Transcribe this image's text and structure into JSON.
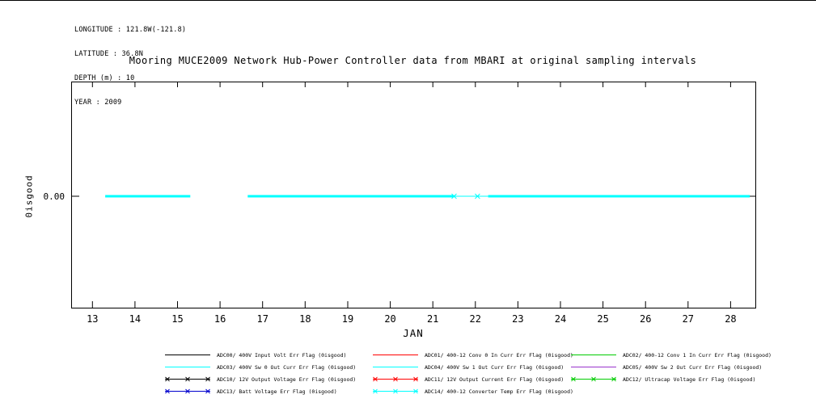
{
  "title": "Mooring MUCE2009 Network Hub-Power Controller data from MBARI at original sampling intervals",
  "metadata": {
    "lines": [
      "LONGITUDE : 121.8W(-121.8)",
      "LATITUDE : 36.8N",
      "DEPTH (m) : 10",
      "YEAR : 2009"
    ]
  },
  "chart_data": {
    "type": "line",
    "title": "Mooring MUCE2009 Network Hub-Power Controller data from MBARI at original sampling intervals",
    "xlabel": "JAN",
    "ylabel": "0isgood",
    "x_ticks": [
      13,
      14,
      15,
      16,
      17,
      18,
      19,
      20,
      21,
      22,
      23,
      24,
      25,
      26,
      27,
      28
    ],
    "xlim": [
      12.5,
      28.6
    ],
    "y_ticks": [
      "0.00"
    ],
    "grid": false,
    "legend_position": "below",
    "series": [
      {
        "name": "ADC14/ 400-12 Converter Temp Err Flag (0isgood) - topmost of overlapping flag series, all constant 0",
        "color": "#00ffff",
        "value": 0,
        "segments": [
          [
            13.3,
            15.3
          ],
          [
            16.65,
            21.5
          ],
          [
            22.3,
            28.45
          ]
        ],
        "thin_segments": [
          [
            21.5,
            22.3
          ]
        ],
        "marker_points": [
          21.5,
          22.05
        ],
        "gaps": [
          [
            15.3,
            16.65
          ]
        ]
      }
    ]
  },
  "legend": {
    "rows": [
      [
        {
          "label": "ADC00/ 400V Input Volt Err Flag (0isgood)",
          "color": "#000000",
          "marker": false
        },
        {
          "label": "ADC01/ 400-12 Conv 0 In Curr Err Flag (0isgood)",
          "color": "#ff0000",
          "marker": false
        },
        {
          "label": "ADC02/ 400-12 Conv 1 In Curr Err Flag (0isgood)",
          "color": "#00cc00",
          "marker": false
        }
      ],
      [
        {
          "label": "ADC03/ 400V Sw 0 Out Curr Err Flag (0isgood)",
          "color": "#00ffff",
          "marker": false
        },
        {
          "label": "ADC04/ 400V Sw 1 Out Curr Err Flag (0isgood)",
          "color": "#00ffff",
          "marker": false
        },
        {
          "label": "ADC05/ 400V Sw 2 Out Curr Err Flag (0isgood)",
          "color": "#9932cc",
          "marker": false
        }
      ],
      [
        {
          "label": "ADC10/ 12V Output Voltage Err Flag (0isgood)",
          "color": "#000000",
          "marker": true
        },
        {
          "label": "ADC11/ 12V Output Current Err Flag (0isgood)",
          "color": "#ff0000",
          "marker": true
        },
        {
          "label": "ADC12/ Ultracap Voltage Err Flag (0isgood)",
          "color": "#00cc00",
          "marker": true
        }
      ],
      [
        {
          "label": "ADC13/ Batt Voltage Err Flag (0isgood)",
          "color": "#0000cd",
          "marker": true
        },
        {
          "label": "ADC14/ 400-12 Converter Temp Err Flag (0isgood)",
          "color": "#00ffff",
          "marker": true
        }
      ]
    ]
  }
}
